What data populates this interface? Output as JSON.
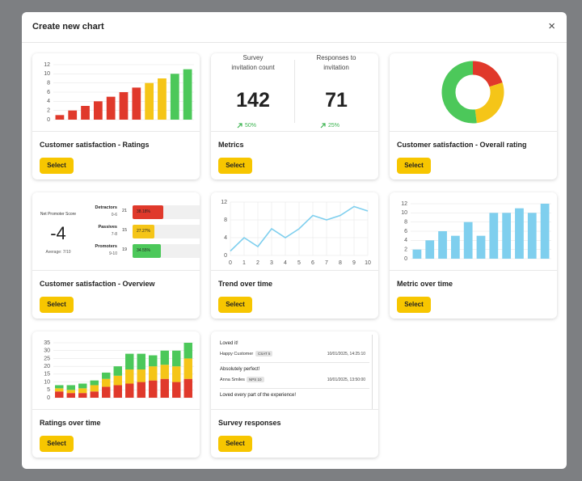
{
  "dialog": {
    "title": "Create new chart",
    "close": "×"
  },
  "cards": [
    {
      "title": "Customer satisfaction - Ratings",
      "button": "Select",
      "preview": {
        "type": "bar",
        "values": [
          1,
          2,
          3,
          4,
          5,
          6,
          7,
          8,
          9,
          10,
          11
        ],
        "colors": [
          "#e0392b",
          "#e0392b",
          "#e0392b",
          "#e0392b",
          "#e0392b",
          "#e0392b",
          "#e0392b",
          "#f5c518",
          "#f5c518",
          "#4cc85a",
          "#4cc85a"
        ],
        "ylim": [
          0,
          12
        ],
        "yticks": [
          0,
          2,
          4,
          6,
          8,
          10,
          12
        ],
        "grid": true
      }
    },
    {
      "title": "Metrics",
      "button": "Select",
      "preview": {
        "type": "metrics",
        "items": [
          {
            "label": "Survey invitation count",
            "value": 142,
            "change": "50%"
          },
          {
            "label": "Responses to invitation",
            "value": 71,
            "change": "25%"
          }
        ]
      }
    },
    {
      "title": "Customer satisfaction - Overall rating",
      "button": "Select",
      "preview": {
        "type": "pie",
        "values": [
          20,
          28,
          52
        ],
        "colors": [
          "#e0392b",
          "#f5c518",
          "#4cc85a"
        ]
      }
    },
    {
      "title": "Customer satisfaction - Overview",
      "button": "Select",
      "preview": {
        "type": "nps",
        "label": "Net Promoter Score",
        "score": -4,
        "average": "Average: 7/10",
        "rows": [
          {
            "name": "Detractors",
            "range": "0-6",
            "count": 21,
            "share": "38.18%",
            "color": "#e0392b"
          },
          {
            "name": "Passives",
            "range": "7-8",
            "count": 15,
            "share": "27.27%",
            "color": "#f5c518"
          },
          {
            "name": "Promoters",
            "range": "9-10",
            "count": 19,
            "share": "34.55%",
            "color": "#4cc85a"
          }
        ]
      }
    },
    {
      "title": "Trend over time",
      "button": "Select",
      "preview": {
        "type": "line",
        "x": [
          0,
          1,
          2,
          3,
          4,
          5,
          6,
          7,
          8,
          9,
          10
        ],
        "values": [
          1,
          4,
          2,
          6,
          4,
          6,
          9,
          8,
          9,
          11,
          10
        ],
        "color": "#7fcfee",
        "xlim": [
          0,
          10
        ],
        "xticks": [
          0,
          1,
          2,
          3,
          4,
          5,
          6,
          7,
          8,
          9,
          10
        ],
        "ylim": [
          0,
          12
        ],
        "yticks": [
          0,
          4,
          8,
          12
        ],
        "grid": true
      }
    },
    {
      "title": "Metric over time",
      "button": "Select",
      "preview": {
        "type": "bar",
        "values": [
          2,
          4,
          6,
          5,
          8,
          5,
          10,
          10,
          11,
          10,
          12
        ],
        "color": "#7fcfee",
        "ylim": [
          0,
          12
        ],
        "yticks": [
          0,
          2,
          4,
          6,
          8,
          10,
          12
        ],
        "grid": true
      }
    },
    {
      "title": "Ratings over time",
      "button": "Select",
      "preview": {
        "type": "stacked",
        "series": [
          {
            "color": "#e0392b",
            "values": [
              4,
              3,
              3,
              4,
              7,
              8,
              9,
              10,
              11,
              12,
              10,
              12
            ]
          },
          {
            "color": "#f5c518",
            "values": [
              2,
              2,
              3,
              4,
              5,
              6,
              9,
              8,
              9,
              9,
              10,
              13
            ]
          },
          {
            "color": "#4cc85a",
            "values": [
              2,
              3,
              3,
              3,
              4,
              6,
              10,
              10,
              7,
              9,
              10,
              10
            ]
          }
        ],
        "ylim": [
          0,
          35
        ],
        "yticks": [
          0,
          5,
          10,
          15,
          20,
          25,
          30,
          35
        ],
        "grid": true
      }
    },
    {
      "title": "Survey responses",
      "button": "Select",
      "preview": {
        "type": "responses",
        "items": [
          {
            "text": "Loved it!",
            "author": "Happy Customer",
            "tag": "CSAT 5",
            "date": "10/01/2025, 14:25:10"
          },
          {
            "text": "Absolutely perfect!",
            "author": "Anna Smiles",
            "tag": "NPS 10",
            "date": "10/01/2025, 13:50:00"
          },
          {
            "text": "Loved every part of the experience!"
          }
        ]
      }
    }
  ]
}
